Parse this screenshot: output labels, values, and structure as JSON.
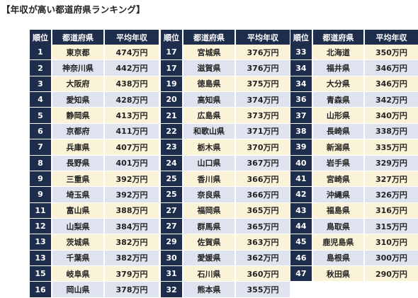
{
  "title": "【年収が高い都道府県ランキング】",
  "headers": {
    "rank": "順位",
    "prefecture": "都道府県",
    "income": "平均年収"
  },
  "colors": {
    "header_bg": "#1f2d4d",
    "row_odd": "#fbf3d8",
    "row_even": "#dfe3ef"
  },
  "tables": [
    {
      "rows": [
        {
          "rank": "1",
          "prefecture": "東京都",
          "income": "474万円"
        },
        {
          "rank": "2",
          "prefecture": "神奈川県",
          "income": "442万円"
        },
        {
          "rank": "3",
          "prefecture": "大阪府",
          "income": "438万円"
        },
        {
          "rank": "4",
          "prefecture": "愛知県",
          "income": "428万円"
        },
        {
          "rank": "5",
          "prefecture": "静岡県",
          "income": "413万円"
        },
        {
          "rank": "6",
          "prefecture": "京都府",
          "income": "411万円"
        },
        {
          "rank": "7",
          "prefecture": "兵庫県",
          "income": "407万円"
        },
        {
          "rank": "8",
          "prefecture": "長野県",
          "income": "401万円"
        },
        {
          "rank": "9",
          "prefecture": "三重県",
          "income": "392万円"
        },
        {
          "rank": "9",
          "prefecture": "埼玉県",
          "income": "392万円"
        },
        {
          "rank": "11",
          "prefecture": "富山県",
          "income": "388万円"
        },
        {
          "rank": "12",
          "prefecture": "山梨県",
          "income": "384万円"
        },
        {
          "rank": "13",
          "prefecture": "茨城県",
          "income": "382万円"
        },
        {
          "rank": "13",
          "prefecture": "千葉県",
          "income": "382万円"
        },
        {
          "rank": "15",
          "prefecture": "岐阜県",
          "income": "379万円"
        },
        {
          "rank": "16",
          "prefecture": "岡山県",
          "income": "378万円"
        }
      ]
    },
    {
      "rows": [
        {
          "rank": "17",
          "prefecture": "宮城県",
          "income": "376万円"
        },
        {
          "rank": "17",
          "prefecture": "滋賀県",
          "income": "376万円"
        },
        {
          "rank": "19",
          "prefecture": "徳島県",
          "income": "375万円"
        },
        {
          "rank": "20",
          "prefecture": "高知県",
          "income": "374万円"
        },
        {
          "rank": "21",
          "prefecture": "広島県",
          "income": "373万円"
        },
        {
          "rank": "22",
          "prefecture": "和歌山県",
          "income": "371万円"
        },
        {
          "rank": "23",
          "prefecture": "栃木県",
          "income": "370万円"
        },
        {
          "rank": "24",
          "prefecture": "山口県",
          "income": "367万円"
        },
        {
          "rank": "25",
          "prefecture": "香川県",
          "income": "366万円"
        },
        {
          "rank": "25",
          "prefecture": "奈良県",
          "income": "366万円"
        },
        {
          "rank": "27",
          "prefecture": "福岡県",
          "income": "365万円"
        },
        {
          "rank": "27",
          "prefecture": "群馬県",
          "income": "365万円"
        },
        {
          "rank": "29",
          "prefecture": "佐賀県",
          "income": "363万円"
        },
        {
          "rank": "30",
          "prefecture": "愛媛県",
          "income": "362万円"
        },
        {
          "rank": "31",
          "prefecture": "石川県",
          "income": "360万円"
        },
        {
          "rank": "32",
          "prefecture": "熊本県",
          "income": "355万円"
        }
      ]
    },
    {
      "rows": [
        {
          "rank": "33",
          "prefecture": "北海道",
          "income": "350万円"
        },
        {
          "rank": "34",
          "prefecture": "福井県",
          "income": "346万円"
        },
        {
          "rank": "34",
          "prefecture": "大分県",
          "income": "346万円"
        },
        {
          "rank": "36",
          "prefecture": "青森県",
          "income": "342万円"
        },
        {
          "rank": "37",
          "prefecture": "山形県",
          "income": "340万円"
        },
        {
          "rank": "38",
          "prefecture": "長崎県",
          "income": "338万円"
        },
        {
          "rank": "39",
          "prefecture": "新潟県",
          "income": "335万円"
        },
        {
          "rank": "40",
          "prefecture": "岩手県",
          "income": "329万円"
        },
        {
          "rank": "41",
          "prefecture": "宮崎県",
          "income": "327万円"
        },
        {
          "rank": "42",
          "prefecture": "沖縄県",
          "income": "326万円"
        },
        {
          "rank": "43",
          "prefecture": "福島県",
          "income": "316万円"
        },
        {
          "rank": "44",
          "prefecture": "鳥取県",
          "income": "315万円"
        },
        {
          "rank": "45",
          "prefecture": "鹿児島県",
          "income": "310万円"
        },
        {
          "rank": "46",
          "prefecture": "島根県",
          "income": "300万円"
        },
        {
          "rank": "47",
          "prefecture": "秋田県",
          "income": "290万円"
        }
      ]
    }
  ]
}
